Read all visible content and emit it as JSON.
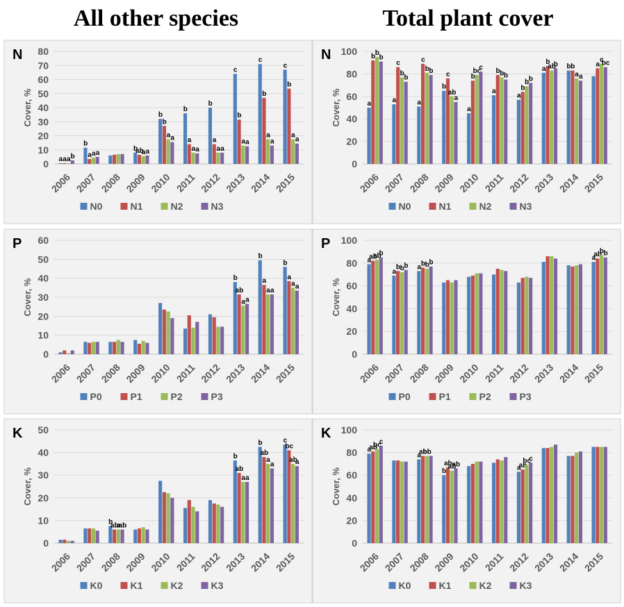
{
  "headings": {
    "left": "All other species",
    "right": "Total plant cover"
  },
  "colors": {
    "level0": "#4f81bd",
    "level1": "#c0504d",
    "level2": "#9bbb59",
    "level3": "#8064a2",
    "panel_bg": "#f2f2f2",
    "grid": "#d9d9d9",
    "axis_text": "#595959"
  },
  "chart_data": [
    {
      "type": "bar",
      "panel_letter": "N",
      "ylabel": "Cover, %",
      "ylim": [
        0,
        80
      ],
      "yticks": [
        0,
        10,
        20,
        30,
        40,
        50,
        60,
        70,
        80
      ],
      "grid": true,
      "legend_position": "bottom",
      "categories": [
        "2006",
        "2007",
        "2008",
        "2009",
        "2010",
        "2011",
        "2012",
        "2013",
        "2014",
        "2015"
      ],
      "series": [
        {
          "name": "N0",
          "values": [
            0.5,
            11.5,
            6,
            8,
            32,
            36,
            40,
            64,
            71,
            67
          ],
          "labels": [
            "a",
            "b",
            "",
            "b",
            "b",
            "b",
            "b",
            "c",
            "c",
            "c"
          ]
        },
        {
          "name": "N1",
          "values": [
            0.5,
            3.5,
            6.5,
            6.5,
            27,
            14,
            14,
            31.5,
            47,
            53.5
          ],
          "labels": [
            "a",
            "a",
            "",
            "ab",
            "b",
            "a",
            "a",
            "b",
            "b",
            "b"
          ]
        },
        {
          "name": "N2",
          "values": [
            0.5,
            4.5,
            7,
            5.5,
            17.5,
            8,
            8,
            13,
            17.5,
            17.5
          ],
          "labels": [
            "a",
            "a",
            "",
            "a",
            "a",
            "a",
            "a",
            "a",
            "a",
            "a"
          ]
        },
        {
          "name": "N3",
          "values": [
            2.5,
            5,
            7,
            6,
            15.5,
            7.5,
            8,
            12.5,
            13,
            14.5
          ],
          "labels": [
            "b",
            "a",
            "",
            "a",
            "a",
            "a",
            "a",
            "a",
            "a",
            "a"
          ]
        }
      ]
    },
    {
      "type": "bar",
      "panel_letter": "N",
      "ylabel": "Cover, %",
      "ylim": [
        0,
        100
      ],
      "yticks": [
        0,
        20,
        40,
        60,
        80,
        100
      ],
      "grid": true,
      "legend_position": "bottom",
      "categories": [
        "2006",
        "2007",
        "2008",
        "2009",
        "2010",
        "2011",
        "2012",
        "2013",
        "2014",
        "2015"
      ],
      "series": [
        {
          "name": "N0",
          "values": [
            50,
            53,
            51,
            65,
            45,
            61,
            57,
            81,
            83,
            78
          ],
          "labels": [
            "a",
            "a",
            "a",
            "b",
            "a",
            "a",
            "a",
            "a",
            "b",
            ""
          ]
        },
        {
          "name": "N1",
          "values": [
            92,
            86,
            89,
            76,
            74,
            79,
            64,
            87,
            83,
            85
          ],
          "labels": [
            "b",
            "c",
            "c",
            "c",
            "b",
            "b",
            "b",
            "b",
            "b",
            "a"
          ]
        },
        {
          "name": "N2",
          "values": [
            95,
            77,
            81,
            60,
            79,
            77,
            69,
            83,
            76,
            89
          ],
          "labels": [
            "b",
            "b",
            "b",
            "ab",
            "bc",
            "b",
            "b",
            "ab",
            "a",
            "c"
          ]
        },
        {
          "name": "N3",
          "values": [
            91,
            73,
            79,
            55,
            82,
            75,
            72,
            85,
            74,
            86
          ],
          "labels": [
            "b",
            "b",
            "b",
            "a",
            "c",
            "b",
            "b",
            "b",
            "a",
            "bc"
          ]
        }
      ]
    },
    {
      "type": "bar",
      "panel_letter": "P",
      "ylabel": "Cover, %",
      "ylim": [
        0,
        60
      ],
      "yticks": [
        0,
        10,
        20,
        30,
        40,
        50,
        60
      ],
      "grid": true,
      "legend_position": "bottom",
      "categories": [
        "2006",
        "2007",
        "2008",
        "2009",
        "2010",
        "2011",
        "2012",
        "2013",
        "2014",
        "2015"
      ],
      "series": [
        {
          "name": "P0",
          "values": [
            1,
            6.5,
            6.5,
            7.5,
            27,
            13.5,
            21,
            38,
            49.5,
            46
          ],
          "labels": [
            "",
            "",
            "",
            "",
            "",
            "",
            "",
            "b",
            "b",
            "b"
          ]
        },
        {
          "name": "P1",
          "values": [
            2,
            6,
            6.5,
            5.5,
            23.5,
            20.5,
            19.5,
            31.5,
            36.5,
            38.5
          ],
          "labels": [
            "",
            "",
            "",
            "",
            "",
            "",
            "",
            "ab",
            "a",
            "a"
          ]
        },
        {
          "name": "P2",
          "values": [
            0.5,
            6.5,
            7.5,
            7,
            22.5,
            14,
            14.5,
            25.5,
            31.5,
            35
          ],
          "labels": [
            "",
            "",
            "",
            "",
            "",
            "",
            "",
            "a",
            "a",
            "a"
          ]
        },
        {
          "name": "P3",
          "values": [
            2,
            6.5,
            6.5,
            6,
            19,
            17,
            14.5,
            26.5,
            31.5,
            33.5
          ],
          "labels": [
            "",
            "",
            "",
            "",
            "",
            "",
            "",
            "a",
            "a",
            "a"
          ]
        }
      ]
    },
    {
      "type": "bar",
      "panel_letter": "P",
      "ylabel": "Cover, %",
      "ylim": [
        0,
        100
      ],
      "yticks": [
        0,
        20,
        40,
        60,
        80,
        100
      ],
      "grid": true,
      "legend_position": "bottom",
      "categories": [
        "2006",
        "2007",
        "2008",
        "2009",
        "2010",
        "2011",
        "2012",
        "2013",
        "2014",
        "2015"
      ],
      "series": [
        {
          "name": "P0",
          "values": [
            79,
            69,
            73,
            63,
            68,
            70,
            63,
            81,
            78,
            81
          ],
          "labels": [
            "a",
            "a",
            "a",
            "",
            "",
            "",
            "",
            "",
            "",
            "a"
          ]
        },
        {
          "name": "P1",
          "values": [
            82,
            73,
            76,
            65,
            69,
            75,
            67,
            86,
            77,
            84
          ],
          "labels": [
            "ab",
            "b",
            "b",
            "",
            "",
            "",
            "",
            "",
            "",
            "ab"
          ]
        },
        {
          "name": "P2",
          "values": [
            83,
            72,
            75,
            63,
            71,
            74,
            68,
            86,
            78,
            87
          ],
          "labels": [
            "ab",
            "b",
            "b",
            "",
            "",
            "",
            "",
            "",
            "",
            "b"
          ]
        },
        {
          "name": "P3",
          "values": [
            85,
            74,
            77,
            65,
            71,
            73,
            67,
            84,
            79,
            85
          ],
          "labels": [
            "b",
            "b",
            "b",
            "",
            "",
            "",
            "",
            "",
            "",
            "b"
          ]
        }
      ]
    },
    {
      "type": "bar",
      "panel_letter": "K",
      "ylabel": "Cover, %",
      "ylim": [
        0,
        50
      ],
      "yticks": [
        0,
        10,
        20,
        30,
        40,
        50
      ],
      "grid": true,
      "legend_position": "bottom",
      "categories": [
        "2006",
        "2007",
        "2008",
        "2009",
        "2010",
        "2011",
        "2012",
        "2013",
        "2014",
        "2015"
      ],
      "series": [
        {
          "name": "K0",
          "values": [
            1.5,
            6.5,
            7.5,
            6,
            27.5,
            15.5,
            19,
            36.5,
            42.5,
            43.5
          ],
          "labels": [
            "",
            "",
            "b",
            "",
            "",
            "",
            "",
            "b",
            "b",
            "c"
          ]
        },
        {
          "name": "K1",
          "values": [
            1.5,
            6.5,
            6,
            6.5,
            22.5,
            19,
            17.5,
            31,
            38,
            41
          ],
          "labels": [
            "",
            "",
            "ab",
            "",
            "",
            "",
            "",
            "ab",
            "ab",
            "bc"
          ]
        },
        {
          "name": "K2",
          "values": [
            1,
            6.5,
            6,
            7,
            22,
            16,
            17,
            27,
            35,
            35
          ],
          "labels": [
            "",
            "",
            "a",
            "",
            "",
            "",
            "",
            "a",
            "a",
            "ab"
          ]
        },
        {
          "name": "K3",
          "values": [
            1,
            5.5,
            6,
            6,
            20,
            14,
            16,
            27,
            33,
            34
          ],
          "labels": [
            "",
            "",
            "ab",
            "",
            "",
            "",
            "",
            "a",
            "a",
            "a"
          ]
        }
      ]
    },
    {
      "type": "bar",
      "panel_letter": "K",
      "ylabel": "Cover, %",
      "ylim": [
        0,
        100
      ],
      "yticks": [
        0,
        20,
        40,
        60,
        80,
        100
      ],
      "grid": true,
      "legend_position": "bottom",
      "categories": [
        "2006",
        "2007",
        "2008",
        "2009",
        "2010",
        "2011",
        "2012",
        "2013",
        "2014",
        "2015"
      ],
      "series": [
        {
          "name": "K0",
          "values": [
            79,
            73,
            74,
            60,
            68,
            71,
            63,
            84,
            77,
            85
          ],
          "labels": [
            "a",
            "",
            "a",
            "b",
            "",
            "",
            "a",
            "",
            "",
            ""
          ]
        },
        {
          "name": "K1",
          "values": [
            81,
            73,
            77,
            67,
            70,
            74,
            65,
            84,
            77,
            85
          ],
          "labels": [
            "ab",
            "",
            "ab",
            "ab",
            "",
            "",
            "ab",
            "",
            "",
            ""
          ]
        },
        {
          "name": "K2",
          "values": [
            83,
            72,
            77,
            64,
            72,
            73,
            69,
            85,
            80,
            85
          ],
          "labels": [
            "bc",
            "",
            "bb",
            "ab",
            "",
            "",
            "bc",
            "",
            "",
            ""
          ]
        },
        {
          "name": "K3",
          "values": [
            86,
            72,
            77,
            66,
            72,
            76,
            71,
            87,
            81,
            85
          ],
          "labels": [
            "c",
            "",
            "",
            "ab",
            "",
            "",
            "c",
            "",
            "",
            ""
          ]
        }
      ]
    }
  ]
}
